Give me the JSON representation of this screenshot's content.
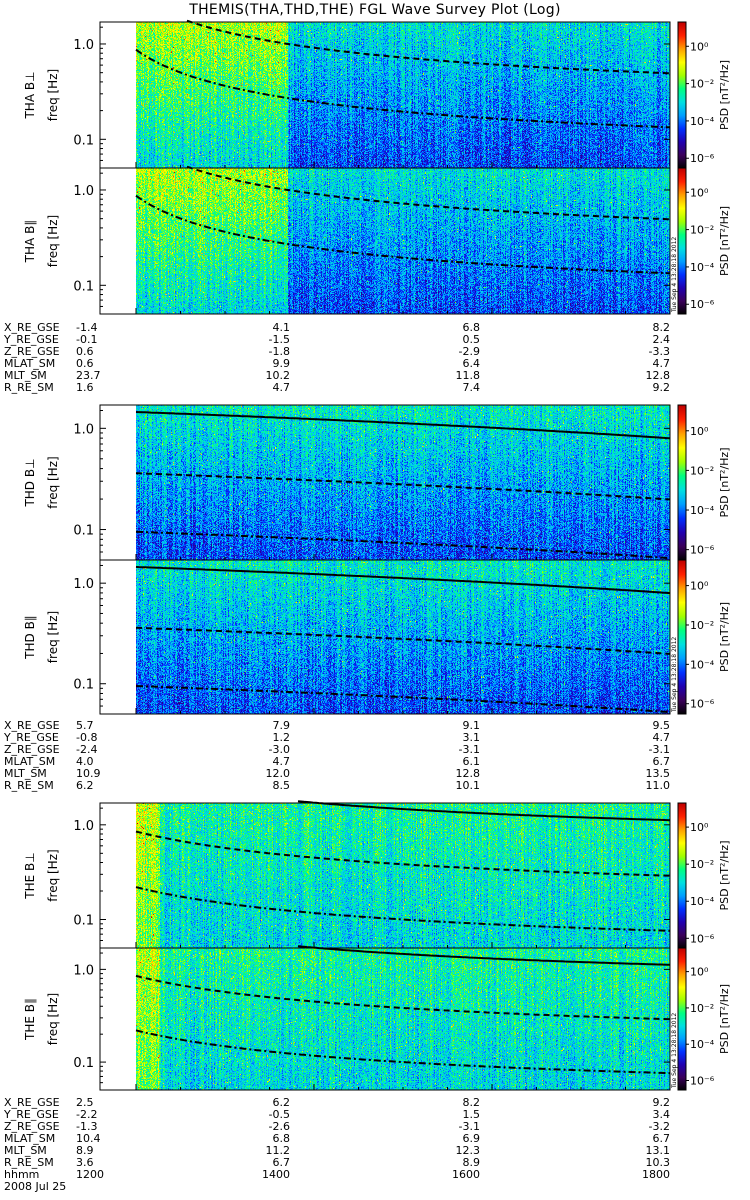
{
  "title": "THEMIS(THA,THD,THE) FGL Wave Survey Plot (Log)",
  "colors": {
    "frame": "#000000",
    "background": "#ffffff",
    "colormap": [
      "#000000",
      "#3a005a",
      "#2000b0",
      "#0030ff",
      "#00a0ff",
      "#00e0e0",
      "#00ff80",
      "#a0ff00",
      "#ffff00",
      "#ffa000",
      "#ff2000",
      "#c00000"
    ]
  },
  "colorbar": {
    "label": "PSD [nT²/Hz]",
    "tick_labels": [
      "10⁰",
      "10⁻²",
      "10⁻⁴",
      "10⁻⁶"
    ],
    "tick_values": [
      1,
      0.01,
      0.0001,
      1e-06
    ],
    "range": [
      3e-07,
      20
    ]
  },
  "freq_axis": {
    "label": "freq [Hz]",
    "tick_labels": [
      "1.0",
      "0.1"
    ],
    "tick_values": [
      1.0,
      0.1
    ],
    "range": [
      0.05,
      1.7
    ],
    "scale": "log"
  },
  "stamp": "Tue Sep  4 13:28:18 2012",
  "time_axis": {
    "row_label": "hhmm",
    "ticks": [
      "1200",
      "1400",
      "1600",
      "1800"
    ],
    "date": "2008 Jul 25"
  },
  "chart_data": {
    "type": "heatmap",
    "x_range": [
      "12:00",
      "18:00"
    ],
    "panels": [
      {
        "probe": "THA",
        "component": "B⊥",
        "ylabel": "THA B⊥"
      },
      {
        "probe": "THA",
        "component": "B∥",
        "ylabel": "THA B∥"
      },
      {
        "probe": "THD",
        "component": "B⊥",
        "ylabel": "THD B⊥"
      },
      {
        "probe": "THD",
        "component": "B∥",
        "ylabel": "THD B∥"
      },
      {
        "probe": "THE",
        "component": "B⊥",
        "ylabel": "THE B⊥"
      },
      {
        "probe": "THE",
        "component": "B∥",
        "ylabel": "THE B∥"
      }
    ]
  },
  "ephemeris": [
    {
      "probe": "THA",
      "rows": [
        {
          "name": "X_RE_GSE",
          "values": [
            "-1.4",
            "4.1",
            "6.8",
            "8.2"
          ]
        },
        {
          "name": "Y_RE_GSE",
          "values": [
            "-0.1",
            "-1.5",
            "0.5",
            "2.4"
          ]
        },
        {
          "name": "Z_RE_GSE",
          "values": [
            "0.6",
            "-1.8",
            "-2.9",
            "-3.3"
          ]
        },
        {
          "name": "MLAT_SM",
          "values": [
            "0.6",
            "9.9",
            "6.4",
            "4.7"
          ]
        },
        {
          "name": "MLT_SM",
          "values": [
            "23.7",
            "10.2",
            "11.8",
            "12.8"
          ]
        },
        {
          "name": "R_RE_SM",
          "values": [
            "1.6",
            "4.7",
            "7.4",
            "9.2"
          ]
        }
      ]
    },
    {
      "probe": "THD",
      "rows": [
        {
          "name": "X_RE_GSE",
          "values": [
            "5.7",
            "7.9",
            "9.1",
            "9.5"
          ]
        },
        {
          "name": "Y_RE_GSE",
          "values": [
            "-0.8",
            "1.2",
            "3.1",
            "4.7"
          ]
        },
        {
          "name": "Z_RE_GSE",
          "values": [
            "-2.4",
            "-3.0",
            "-3.1",
            "-3.1"
          ]
        },
        {
          "name": "MLAT_SM",
          "values": [
            "4.0",
            "4.7",
            "6.1",
            "6.7"
          ]
        },
        {
          "name": "MLT_SM",
          "values": [
            "10.9",
            "12.0",
            "12.8",
            "13.5"
          ]
        },
        {
          "name": "R_RE_SM",
          "values": [
            "6.2",
            "8.5",
            "10.1",
            "11.0"
          ]
        }
      ]
    },
    {
      "probe": "THE",
      "rows": [
        {
          "name": "X_RE_GSE",
          "values": [
            "2.5",
            "6.2",
            "8.2",
            "9.2"
          ]
        },
        {
          "name": "Y_RE_GSE",
          "values": [
            "-2.2",
            "-0.5",
            "1.5",
            "3.4"
          ]
        },
        {
          "name": "Z_RE_GSE",
          "values": [
            "-1.3",
            "-2.6",
            "-3.1",
            "-3.2"
          ]
        },
        {
          "name": "MLAT_SM",
          "values": [
            "10.4",
            "6.8",
            "6.9",
            "6.7"
          ]
        },
        {
          "name": "MLT_SM",
          "values": [
            "8.9",
            "11.2",
            "12.3",
            "13.1"
          ]
        },
        {
          "name": "R_RE_SM",
          "values": [
            "3.6",
            "6.7",
            "8.9",
            "10.3"
          ]
        }
      ]
    }
  ]
}
